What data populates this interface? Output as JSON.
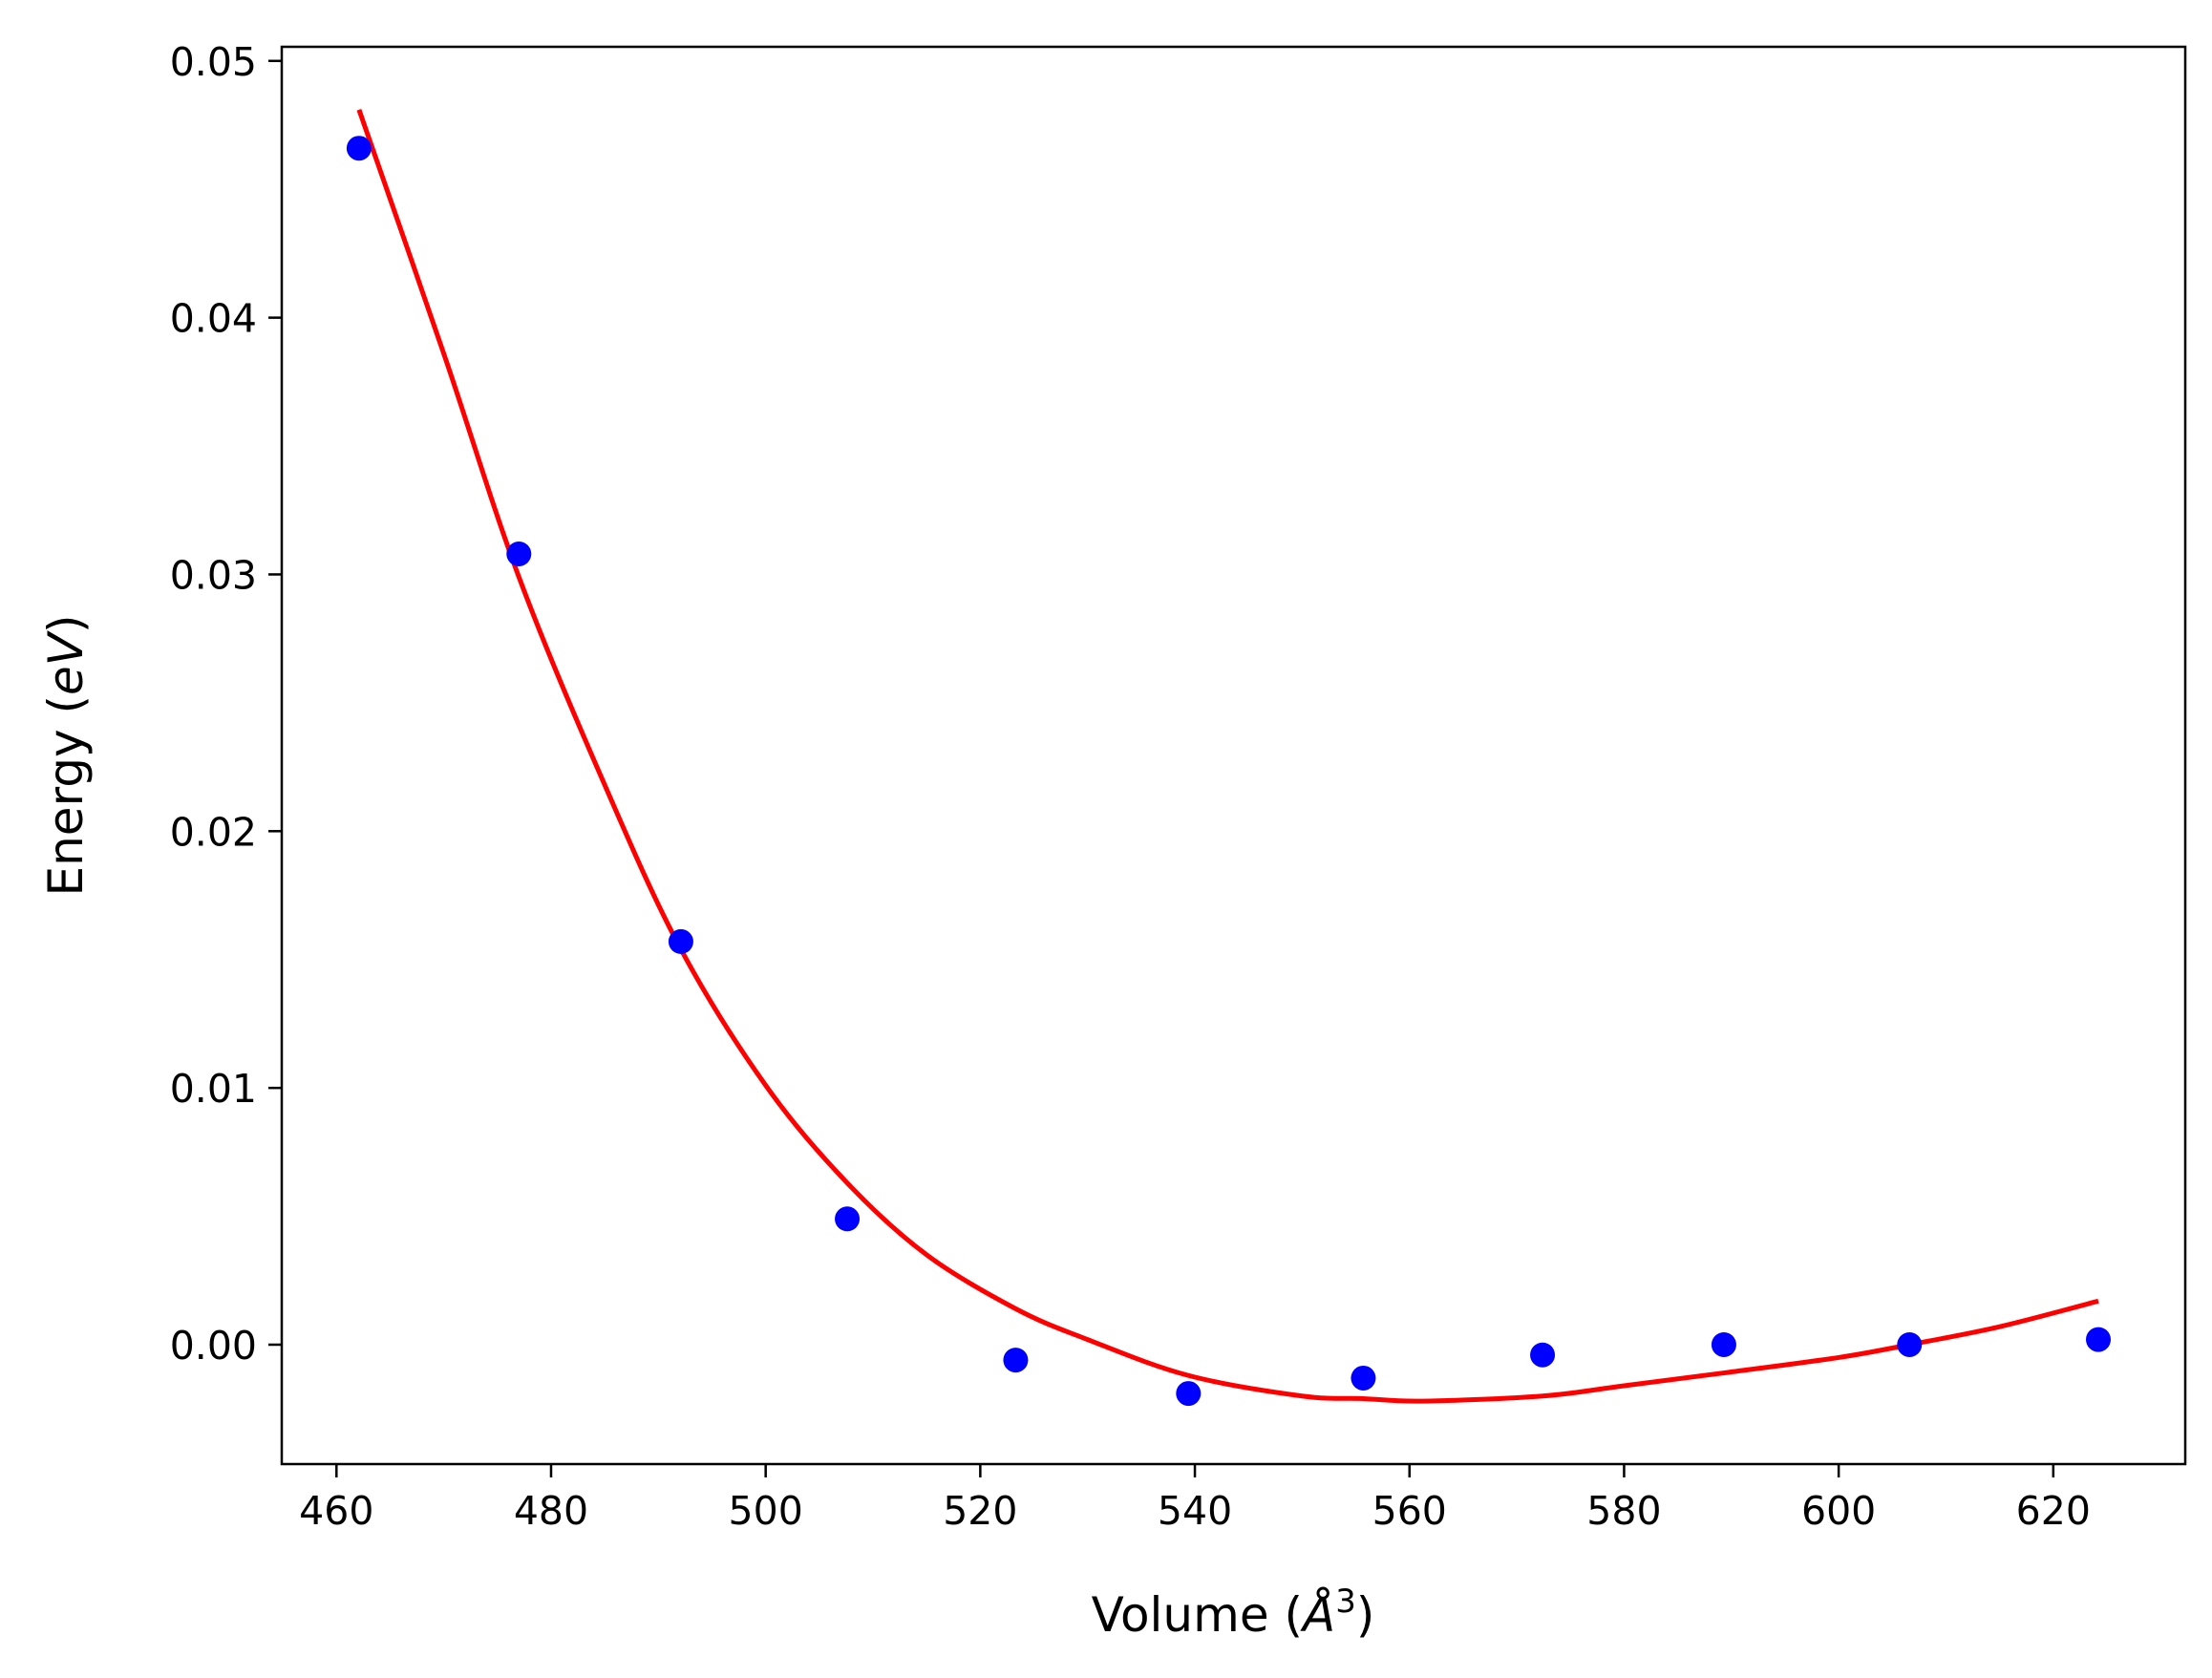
{
  "chart_data": {
    "type": "scatter",
    "title": "",
    "xlabel": "Volume",
    "xlabel_unit": "Å",
    "xlabel_unit_exponent": "3",
    "ylabel": "Energy",
    "ylabel_unit": "eV",
    "xlim": [
      454.9,
      632.3
    ],
    "ylim": [
      -0.00465,
      0.05055
    ],
    "x_ticks": [
      460,
      480,
      500,
      520,
      540,
      560,
      580,
      600,
      620
    ],
    "x_tick_labels": [
      "460",
      "480",
      "500",
      "520",
      "540",
      "560",
      "580",
      "600",
      "620"
    ],
    "y_ticks": [
      0.0,
      0.01,
      0.02,
      0.03,
      0.04,
      0.05
    ],
    "y_tick_labels": [
      "0.00",
      "0.01",
      "0.02",
      "0.03",
      "0.04",
      "0.05"
    ],
    "grid": false,
    "legend": null,
    "series": [
      {
        "kind": "points",
        "color": "#0000ff",
        "x": [
          462.1,
          477.0,
          492.1,
          507.6,
          523.3,
          539.4,
          555.7,
          572.4,
          589.3,
          606.6,
          624.2
        ],
        "y": [
          0.0466,
          0.0308,
          0.0157,
          0.0049,
          -0.0006,
          -0.0019,
          -0.0013,
          -0.0004,
          0.0,
          0.0,
          0.0002
        ]
      },
      {
        "kind": "line",
        "color": "#ff0000",
        "x": [
          462.1,
          470,
          477.0,
          485,
          492.1,
          500,
          507.6,
          515,
          523.3,
          530,
          539.4,
          550,
          555.7,
          561.2,
          572.4,
          580,
          589.3,
          600,
          606.6,
          615,
          624.2
        ],
        "y": [
          0.0481,
          0.0386,
          0.0299,
          0.0218,
          0.0154,
          0.0101,
          0.0063,
          0.0035,
          0.0014,
          0.0002,
          -0.0012,
          -0.002,
          -0.0021,
          -0.0022,
          -0.002,
          -0.0016,
          -0.0011,
          -0.0005,
          0.0,
          0.0007,
          0.0017
        ]
      }
    ],
    "colors": {
      "points": "#0000ff",
      "fit_line": "#ff0000",
      "axes": "#000000",
      "background": "#ffffff"
    }
  }
}
